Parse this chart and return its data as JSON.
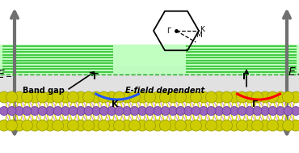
{
  "figsize": [
    3.7,
    1.89
  ],
  "dpi": 100,
  "arrow_color": "#707070",
  "red_curve_color": "#ff0000",
  "blue_curve_color": "#2255ff",
  "atom_S_color": "#cccc00",
  "atom_Mo_color": "#9966bb",
  "atom_S_edge": "#999900",
  "atom_Mo_edge": "#6633aa",
  "bond_yellow": "#dddd00",
  "bond_purple": "#cc99cc",
  "hbn_green_bg": "#bbffbb",
  "hbn_stripe": "#22bb22",
  "gap_bg": "#e0e0e0",
  "dashed_green": "#22aa22",
  "text_Gamma": "Γ",
  "text_K": "K",
  "text_M": "M",
  "text_band_gap": "Band gap",
  "text_E_field": "E-field dependent"
}
